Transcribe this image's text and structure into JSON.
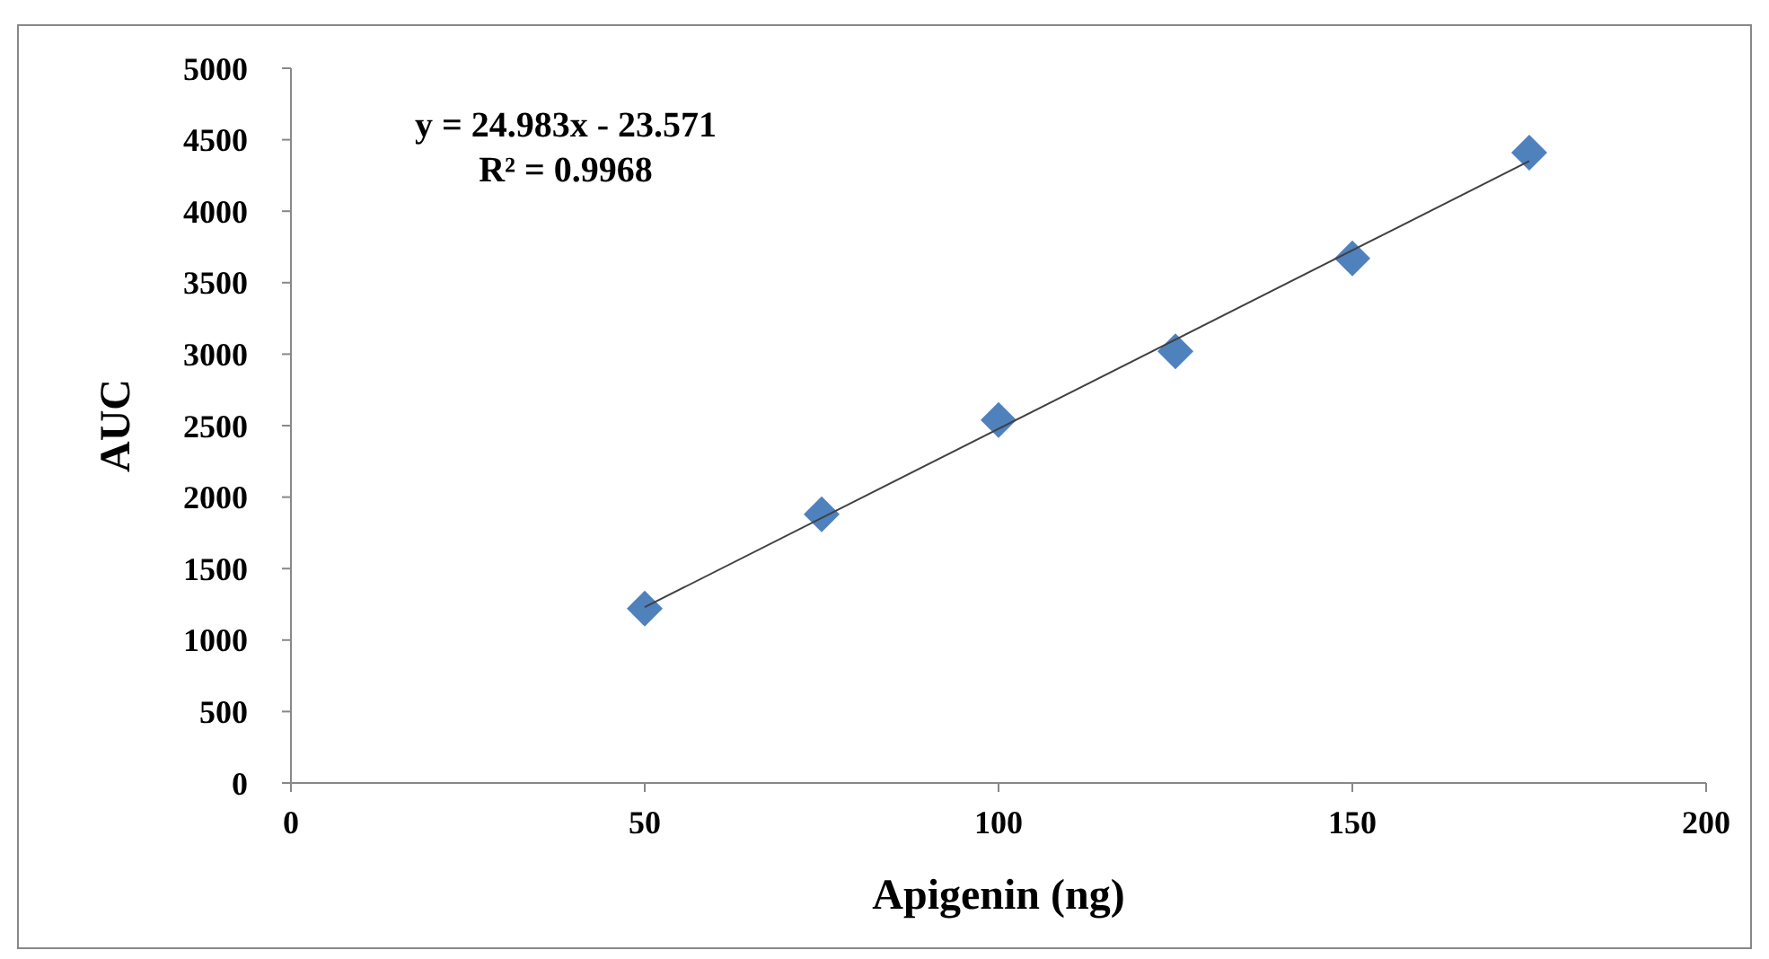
{
  "chart_data": {
    "type": "scatter",
    "xlabel": "Apigenin (ng)",
    "ylabel": "AUC",
    "annotations": [
      "y = 24.983x - 23.571",
      "R² = 0.9968"
    ],
    "series": [
      {
        "color": "#4f81bd",
        "marker": "diamond",
        "x": [
          50,
          75,
          100,
          125,
          150,
          175
        ],
        "values": [
          1220,
          1880,
          2540,
          3020,
          3670,
          4410
        ]
      },
      {
        "type": "line",
        "color": "#404040",
        "marker": "none",
        "line_style": "solid",
        "x": [
          50,
          175
        ],
        "values": [
          1230,
          4350
        ]
      }
    ],
    "xlim": [
      0,
      200
    ],
    "xticks": [
      0,
      50,
      100,
      150,
      200
    ],
    "ylim": [
      0,
      5000
    ],
    "yticks": [
      0,
      500,
      1000,
      1500,
      2000,
      2500,
      3000,
      3500,
      4000,
      4500,
      5000
    ],
    "grid": false
  }
}
